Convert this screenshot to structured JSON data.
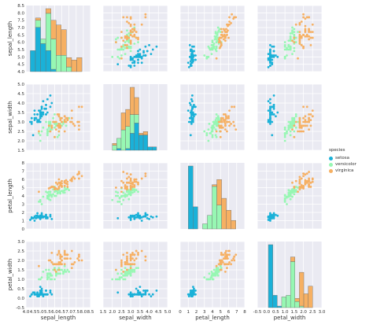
{
  "colors": {
    "setosa": "#1ab1d8",
    "versicolor": "#97f7b3",
    "virginica": "#f6b063"
  },
  "legend": {
    "title": "species",
    "entries": [
      "setosa",
      "versicolor",
      "virginica"
    ]
  },
  "chart_data": {
    "type": "scatter",
    "layout": "pairplot",
    "variables": [
      "sepal_length",
      "sepal_width",
      "petal_length",
      "petal_width"
    ],
    "axes": {
      "sepal_length": {
        "range": [
          4.0,
          8.5
        ],
        "ticks": [
          "4.0",
          "4.5",
          "5.0",
          "5.5",
          "6.0",
          "6.5",
          "7.0",
          "7.5",
          "8.0",
          "8.5"
        ]
      },
      "sepal_width": {
        "range": [
          1.5,
          5.0
        ],
        "ticks": [
          "1.5",
          "2.0",
          "2.5",
          "3.0",
          "3.5",
          "4.0",
          "4.5",
          "5.0"
        ]
      },
      "petal_length": {
        "range": [
          0,
          8
        ],
        "ticks": [
          "0",
          "1",
          "2",
          "3",
          "4",
          "5",
          "6",
          "7",
          "8"
        ]
      },
      "petal_width": {
        "range": [
          -0.5,
          3.0
        ],
        "ticks": [
          "-0.5",
          "0.0",
          "0.5",
          "1.0",
          "1.5",
          "2.0",
          "2.5",
          "3.0"
        ]
      }
    },
    "series": [
      {
        "name": "setosa",
        "points": [
          [
            5.1,
            3.5,
            1.4,
            0.2
          ],
          [
            4.9,
            3.0,
            1.4,
            0.2
          ],
          [
            4.7,
            3.2,
            1.3,
            0.2
          ],
          [
            4.6,
            3.1,
            1.5,
            0.2
          ],
          [
            5.0,
            3.6,
            1.4,
            0.2
          ],
          [
            5.4,
            3.9,
            1.7,
            0.4
          ],
          [
            4.6,
            3.4,
            1.4,
            0.3
          ],
          [
            5.0,
            3.4,
            1.5,
            0.2
          ],
          [
            4.4,
            2.9,
            1.4,
            0.2
          ],
          [
            4.9,
            3.1,
            1.5,
            0.1
          ],
          [
            5.4,
            3.7,
            1.5,
            0.2
          ],
          [
            4.8,
            3.4,
            1.6,
            0.2
          ],
          [
            4.8,
            3.0,
            1.4,
            0.1
          ],
          [
            4.3,
            3.0,
            1.1,
            0.1
          ],
          [
            5.8,
            4.0,
            1.2,
            0.2
          ],
          [
            5.7,
            4.4,
            1.5,
            0.4
          ],
          [
            5.4,
            3.9,
            1.3,
            0.4
          ],
          [
            5.1,
            3.5,
            1.4,
            0.3
          ],
          [
            5.7,
            3.8,
            1.7,
            0.3
          ],
          [
            5.1,
            3.8,
            1.5,
            0.3
          ],
          [
            5.4,
            3.4,
            1.7,
            0.2
          ],
          [
            5.1,
            3.7,
            1.5,
            0.4
          ],
          [
            4.6,
            3.6,
            1.0,
            0.2
          ],
          [
            5.1,
            3.3,
            1.7,
            0.5
          ],
          [
            4.8,
            3.4,
            1.9,
            0.2
          ],
          [
            5.0,
            3.0,
            1.6,
            0.2
          ],
          [
            5.0,
            3.4,
            1.6,
            0.4
          ],
          [
            5.2,
            3.5,
            1.5,
            0.2
          ],
          [
            5.2,
            3.4,
            1.4,
            0.2
          ],
          [
            4.7,
            3.2,
            1.6,
            0.2
          ],
          [
            4.8,
            3.1,
            1.6,
            0.2
          ],
          [
            5.4,
            3.4,
            1.5,
            0.4
          ],
          [
            5.2,
            4.1,
            1.5,
            0.1
          ],
          [
            5.5,
            4.2,
            1.4,
            0.2
          ],
          [
            4.9,
            3.1,
            1.5,
            0.2
          ],
          [
            5.0,
            3.2,
            1.2,
            0.2
          ],
          [
            5.5,
            3.5,
            1.3,
            0.2
          ],
          [
            4.9,
            3.6,
            1.4,
            0.1
          ],
          [
            4.4,
            3.0,
            1.3,
            0.2
          ],
          [
            5.1,
            3.4,
            1.5,
            0.2
          ],
          [
            5.0,
            3.5,
            1.3,
            0.3
          ],
          [
            4.5,
            2.3,
            1.3,
            0.3
          ],
          [
            4.4,
            3.2,
            1.3,
            0.2
          ],
          [
            5.0,
            3.5,
            1.6,
            0.6
          ],
          [
            5.1,
            3.8,
            1.9,
            0.4
          ],
          [
            4.8,
            3.0,
            1.4,
            0.3
          ],
          [
            5.1,
            3.8,
            1.6,
            0.2
          ],
          [
            4.6,
            3.2,
            1.4,
            0.2
          ],
          [
            5.3,
            3.7,
            1.5,
            0.2
          ],
          [
            5.0,
            3.3,
            1.4,
            0.2
          ]
        ]
      },
      {
        "name": "versicolor",
        "points": [
          [
            7.0,
            3.2,
            4.7,
            1.4
          ],
          [
            6.4,
            3.2,
            4.5,
            1.5
          ],
          [
            6.9,
            3.1,
            4.9,
            1.5
          ],
          [
            5.5,
            2.3,
            4.0,
            1.3
          ],
          [
            6.5,
            2.8,
            4.6,
            1.5
          ],
          [
            5.7,
            2.8,
            4.5,
            1.3
          ],
          [
            6.3,
            3.3,
            4.7,
            1.6
          ],
          [
            4.9,
            2.4,
            3.3,
            1.0
          ],
          [
            6.6,
            2.9,
            4.6,
            1.3
          ],
          [
            5.2,
            2.7,
            3.9,
            1.4
          ],
          [
            5.0,
            2.0,
            3.5,
            1.0
          ],
          [
            5.9,
            3.0,
            4.2,
            1.5
          ],
          [
            6.0,
            2.2,
            4.0,
            1.0
          ],
          [
            6.1,
            2.9,
            4.7,
            1.4
          ],
          [
            5.6,
            2.9,
            3.6,
            1.3
          ],
          [
            6.7,
            3.1,
            4.4,
            1.4
          ],
          [
            5.6,
            3.0,
            4.5,
            1.5
          ],
          [
            5.8,
            2.7,
            4.1,
            1.0
          ],
          [
            6.2,
            2.2,
            4.5,
            1.5
          ],
          [
            5.6,
            2.5,
            3.9,
            1.1
          ],
          [
            5.9,
            3.2,
            4.8,
            1.8
          ],
          [
            6.1,
            2.8,
            4.0,
            1.3
          ],
          [
            6.3,
            2.5,
            4.9,
            1.5
          ],
          [
            6.1,
            2.8,
            4.7,
            1.2
          ],
          [
            6.4,
            2.9,
            4.3,
            1.3
          ],
          [
            6.6,
            3.0,
            4.4,
            1.4
          ],
          [
            6.8,
            2.8,
            4.8,
            1.4
          ],
          [
            6.7,
            3.0,
            5.0,
            1.7
          ],
          [
            6.0,
            2.9,
            4.5,
            1.5
          ],
          [
            5.7,
            2.6,
            3.5,
            1.0
          ],
          [
            5.5,
            2.4,
            3.8,
            1.1
          ],
          [
            5.5,
            2.4,
            3.7,
            1.0
          ],
          [
            5.8,
            2.7,
            3.9,
            1.2
          ],
          [
            6.0,
            2.7,
            5.1,
            1.6
          ],
          [
            5.4,
            3.0,
            4.5,
            1.5
          ],
          [
            6.0,
            3.4,
            4.5,
            1.6
          ],
          [
            6.7,
            3.1,
            4.7,
            1.5
          ],
          [
            6.3,
            2.3,
            4.4,
            1.3
          ],
          [
            5.6,
            3.0,
            4.1,
            1.3
          ],
          [
            5.5,
            2.5,
            4.0,
            1.3
          ],
          [
            5.5,
            2.6,
            4.4,
            1.2
          ],
          [
            6.1,
            3.0,
            4.6,
            1.4
          ],
          [
            5.8,
            2.6,
            4.0,
            1.2
          ],
          [
            5.0,
            2.3,
            3.3,
            1.0
          ],
          [
            5.6,
            2.7,
            4.2,
            1.3
          ],
          [
            5.7,
            3.0,
            4.2,
            1.2
          ],
          [
            5.7,
            2.9,
            4.2,
            1.3
          ],
          [
            6.2,
            2.9,
            4.3,
            1.3
          ],
          [
            5.1,
            2.5,
            3.0,
            1.1
          ],
          [
            5.7,
            2.8,
            4.1,
            1.3
          ]
        ]
      },
      {
        "name": "virginica",
        "points": [
          [
            6.3,
            3.3,
            6.0,
            2.5
          ],
          [
            5.8,
            2.7,
            5.1,
            1.9
          ],
          [
            7.1,
            3.0,
            5.9,
            2.1
          ],
          [
            6.3,
            2.9,
            5.6,
            1.8
          ],
          [
            6.5,
            3.0,
            5.8,
            2.2
          ],
          [
            7.6,
            3.0,
            6.6,
            2.1
          ],
          [
            4.9,
            2.5,
            4.5,
            1.7
          ],
          [
            7.3,
            2.9,
            6.3,
            1.8
          ],
          [
            6.7,
            2.5,
            5.8,
            1.8
          ],
          [
            7.2,
            3.6,
            6.1,
            2.5
          ],
          [
            6.5,
            3.2,
            5.1,
            2.0
          ],
          [
            6.4,
            2.7,
            5.3,
            1.9
          ],
          [
            6.8,
            3.0,
            5.5,
            2.1
          ],
          [
            5.7,
            2.5,
            5.0,
            2.0
          ],
          [
            5.8,
            2.8,
            5.1,
            2.4
          ],
          [
            6.4,
            3.2,
            5.3,
            2.3
          ],
          [
            6.5,
            3.0,
            5.5,
            1.8
          ],
          [
            7.7,
            3.8,
            6.7,
            2.2
          ],
          [
            7.7,
            2.6,
            6.9,
            2.3
          ],
          [
            6.0,
            2.2,
            5.0,
            1.5
          ],
          [
            6.9,
            3.2,
            5.7,
            2.3
          ],
          [
            5.6,
            2.8,
            4.9,
            2.0
          ],
          [
            7.7,
            2.8,
            6.7,
            2.0
          ],
          [
            6.3,
            2.7,
            4.9,
            1.8
          ],
          [
            6.7,
            3.3,
            5.7,
            2.1
          ],
          [
            7.2,
            3.2,
            6.0,
            1.8
          ],
          [
            6.2,
            2.8,
            4.8,
            1.8
          ],
          [
            6.1,
            3.0,
            4.9,
            1.8
          ],
          [
            6.4,
            2.8,
            5.6,
            2.1
          ],
          [
            7.2,
            3.0,
            5.8,
            1.6
          ],
          [
            7.4,
            2.8,
            6.1,
            1.9
          ],
          [
            7.9,
            3.8,
            6.4,
            2.0
          ],
          [
            6.4,
            2.8,
            5.6,
            2.2
          ],
          [
            6.3,
            2.8,
            5.1,
            1.5
          ],
          [
            6.1,
            2.6,
            5.6,
            1.4
          ],
          [
            7.7,
            3.0,
            6.1,
            2.3
          ],
          [
            6.3,
            3.4,
            5.6,
            2.4
          ],
          [
            6.4,
            3.1,
            5.5,
            1.8
          ],
          [
            6.0,
            3.0,
            4.8,
            1.8
          ],
          [
            6.9,
            3.1,
            5.4,
            2.1
          ],
          [
            6.7,
            3.1,
            5.6,
            2.4
          ],
          [
            6.9,
            3.1,
            5.1,
            2.3
          ],
          [
            5.8,
            2.7,
            5.1,
            1.9
          ],
          [
            6.8,
            3.2,
            5.9,
            2.3
          ],
          [
            6.7,
            3.3,
            5.7,
            2.5
          ],
          [
            6.7,
            3.0,
            5.2,
            2.3
          ],
          [
            6.3,
            2.5,
            5.0,
            1.9
          ],
          [
            6.5,
            3.0,
            5.2,
            2.0
          ],
          [
            6.2,
            3.4,
            5.4,
            2.3
          ],
          [
            5.9,
            3.0,
            5.1,
            1.8
          ]
        ]
      }
    ],
    "diagonal": {
      "type": "histogram",
      "stacked": true,
      "bins": 10
    },
    "grid": true,
    "legend_position": "right"
  }
}
